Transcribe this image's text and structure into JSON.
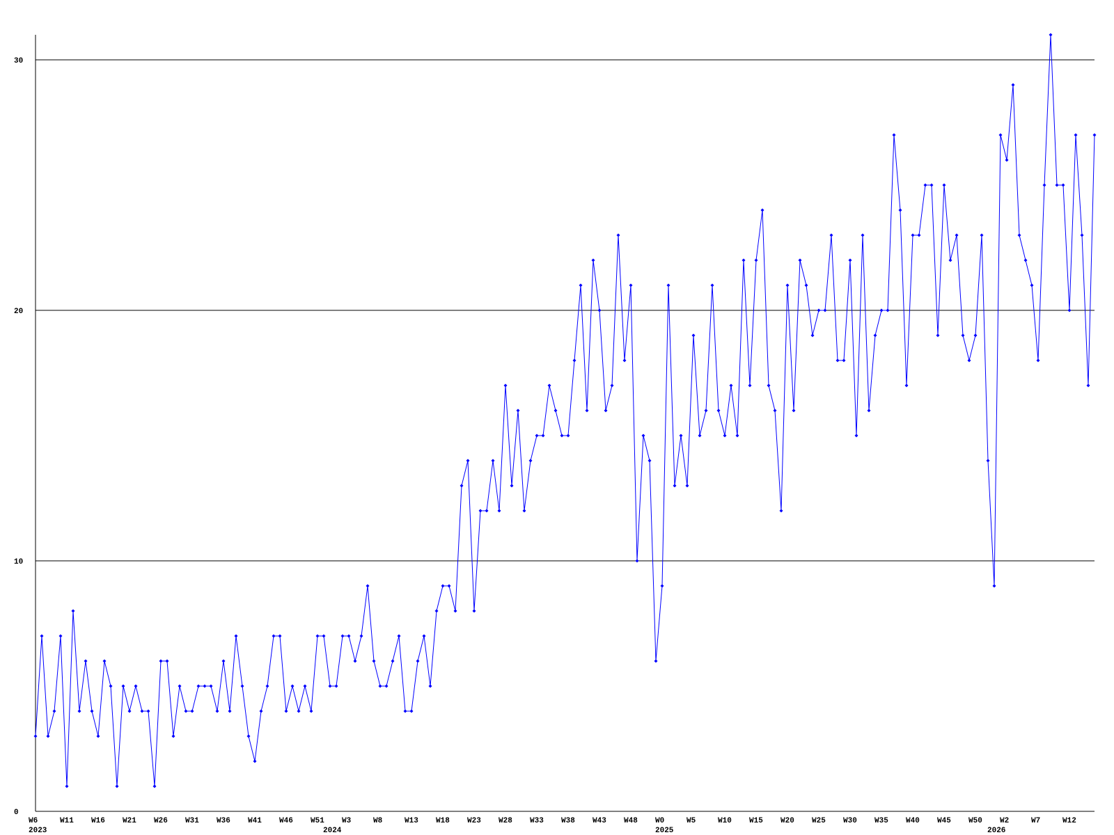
{
  "chart_data": {
    "type": "line",
    "categories": [
      "W6",
      null,
      null,
      null,
      null,
      "W11",
      null,
      null,
      null,
      null,
      "W16",
      null,
      null,
      null,
      null,
      "W21",
      null,
      null,
      null,
      null,
      "W26",
      null,
      null,
      null,
      null,
      "W31",
      null,
      null,
      null,
      null,
      "W36",
      null,
      null,
      null,
      null,
      "W41",
      null,
      null,
      null,
      null,
      "W46",
      null,
      null,
      null,
      null,
      "W51",
      null,
      null,
      null,
      null,
      "W3",
      null,
      null,
      null,
      null,
      "W8",
      null,
      null,
      null,
      null,
      "W13",
      null,
      null,
      null,
      null,
      "W18",
      null,
      null,
      null,
      null,
      "W23",
      null,
      null,
      null,
      null,
      "W28",
      null,
      null,
      null,
      null,
      "W33",
      null,
      null,
      null,
      null,
      "W38",
      null,
      null,
      null,
      null,
      "W43",
      null,
      null,
      null,
      null,
      "W48",
      null,
      null,
      null,
      null,
      "W0",
      null,
      null,
      null,
      null,
      "W5",
      null,
      null,
      null,
      null,
      "W10",
      null,
      null,
      null,
      null,
      "W15",
      null,
      null,
      null,
      null,
      "W20",
      null,
      null,
      null,
      null,
      "W25",
      null,
      null,
      null,
      null,
      "W30",
      null,
      null,
      null,
      null,
      "W35",
      null,
      null,
      null,
      null,
      "W40",
      null,
      null,
      null,
      null,
      "W45",
      null,
      null,
      null,
      null,
      "W50",
      null,
      null,
      null,
      null,
      "W2",
      null,
      null,
      null,
      null,
      "W7",
      null,
      null,
      null,
      null,
      "W12",
      null,
      null,
      null,
      null
    ],
    "years": [
      "2023",
      null,
      null,
      null,
      null,
      null,
      null,
      null,
      null,
      null,
      null,
      null,
      null,
      null,
      null,
      null,
      null,
      null,
      null,
      null,
      null,
      null,
      null,
      null,
      null,
      null,
      null,
      null,
      null,
      null,
      null,
      null,
      null,
      null,
      null,
      null,
      null,
      null,
      null,
      null,
      null,
      null,
      null,
      null,
      null,
      null,
      null,
      "2024",
      null,
      null,
      null,
      null,
      null,
      null,
      null,
      null,
      null,
      null,
      null,
      null,
      null,
      null,
      null,
      null,
      null,
      null,
      null,
      null,
      null,
      null,
      null,
      null,
      null,
      null,
      null,
      null,
      null,
      null,
      null,
      null,
      null,
      null,
      null,
      null,
      null,
      null,
      null,
      null,
      null,
      null,
      null,
      null,
      null,
      null,
      null,
      null,
      null,
      null,
      null,
      null,
      "2025",
      null,
      null,
      null,
      null,
      null,
      null,
      null,
      null,
      null,
      null,
      null,
      null,
      null,
      null,
      null,
      null,
      null,
      null,
      null,
      null,
      null,
      null,
      null,
      null,
      null,
      null,
      null,
      null,
      null,
      null,
      null,
      null,
      null,
      null,
      null,
      null,
      null,
      null,
      null,
      null,
      null,
      null,
      null,
      null,
      null,
      null,
      null,
      null,
      null,
      null,
      null,
      null,
      "2026",
      null,
      null,
      null,
      null,
      null,
      null,
      null,
      null,
      null,
      null,
      null,
      null,
      null,
      null,
      null,
      null
    ],
    "series": [
      {
        "color": "#0000ff",
        "values": [
          3,
          7,
          3,
          4,
          7,
          1,
          8,
          4,
          6,
          4,
          3,
          6,
          5,
          1,
          5,
          4,
          5,
          4,
          4,
          1,
          6,
          6,
          3,
          5,
          4,
          4,
          5,
          5,
          5,
          4,
          6,
          4,
          7,
          5,
          3,
          2,
          4,
          5,
          7,
          7,
          4,
          5,
          4,
          5,
          4,
          7,
          7,
          5,
          5,
          7,
          7,
          6,
          7,
          9,
          6,
          5,
          5,
          6,
          7,
          4,
          4,
          6,
          7,
          5,
          8,
          9,
          9,
          8,
          13,
          14,
          8,
          12,
          12,
          14,
          12,
          17,
          13,
          16,
          12,
          14,
          15,
          15,
          17,
          16,
          15,
          15,
          18,
          21,
          16,
          22,
          20,
          16,
          17,
          23,
          18,
          21,
          10,
          15,
          14,
          6,
          9,
          21,
          13,
          15,
          13,
          19,
          15,
          16,
          21,
          16,
          15,
          17,
          15,
          22,
          17,
          22,
          24,
          17,
          16,
          12,
          21,
          16,
          22,
          21,
          19,
          20,
          20,
          23,
          18,
          18,
          22,
          15,
          23,
          16,
          19,
          20,
          20,
          27,
          24,
          17,
          23,
          23,
          25,
          25,
          19,
          25,
          22,
          23,
          19,
          18,
          19,
          23,
          14,
          9,
          27,
          26,
          29,
          23,
          22,
          21,
          18,
          25,
          31,
          25,
          25,
          20,
          27,
          23,
          17,
          27
        ]
      }
    ],
    "ylim": [
      0,
      31
    ],
    "yticks": [
      0,
      10,
      20,
      30
    ],
    "grid": true
  }
}
